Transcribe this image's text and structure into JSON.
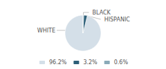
{
  "chart_data": {
    "type": "pie",
    "categories": [
      "WHITE",
      "HISPANIC",
      "BLACK"
    ],
    "values": [
      96.2,
      3.2,
      0.6
    ],
    "colors": [
      "#d4dfe8",
      "#2d5f78",
      "#8aaab8"
    ],
    "legend_labels": [
      "96.2%",
      "3.2%",
      "0.6%"
    ],
    "legend": "bottom"
  }
}
